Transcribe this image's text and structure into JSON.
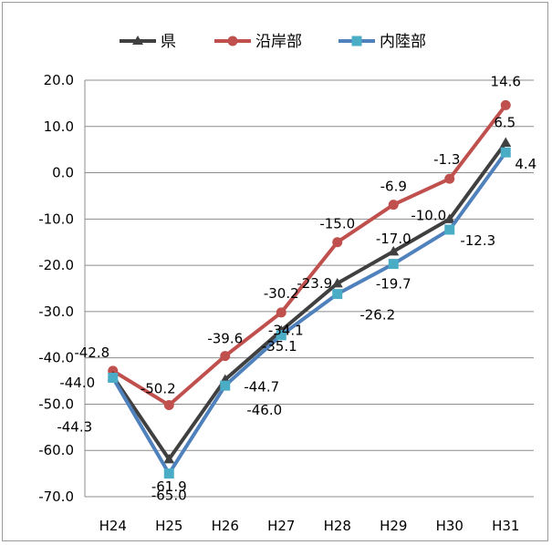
{
  "chart_data": {
    "type": "line",
    "title": "",
    "xlabel": "",
    "ylabel": "",
    "categories": [
      "H24",
      "H25",
      "H26",
      "H27",
      "H28",
      "H29",
      "H30",
      "H31"
    ],
    "ylim": [
      -70,
      20
    ],
    "yticks": [
      "20.0",
      "10.0",
      "0.0",
      "-10.0",
      "-20.0",
      "-30.0",
      "-40.0",
      "-50.0",
      "-60.0",
      "-70.0"
    ],
    "grid": "horizontal",
    "legend_position": "top",
    "series": [
      {
        "name": "県",
        "color": "#404040",
        "marker": "triangle",
        "values": [
          -44.0,
          -61.9,
          -44.7,
          -34.1,
          -23.9,
          -17.0,
          -10.0,
          6.5
        ],
        "labels": [
          "-44.0",
          "-61.9",
          "-44.7",
          "-34.1",
          "-23.9",
          "-17.0",
          "-10.0",
          "6.5"
        ]
      },
      {
        "name": "沿岸部",
        "color": "#c0504d",
        "marker": "circle",
        "values": [
          -42.8,
          -50.2,
          -39.6,
          -30.2,
          -15.0,
          -6.9,
          -1.3,
          14.6
        ],
        "labels": [
          "-42.8",
          "-50.2",
          "-39.6",
          "-30.2",
          "-15.0",
          "-6.9",
          "-1.3",
          "14.6"
        ]
      },
      {
        "name": "内陸部",
        "color": "#4f81bd",
        "marker": "square",
        "values": [
          -44.3,
          -65.0,
          -46.0,
          -35.1,
          -26.2,
          -19.7,
          -12.3,
          4.4
        ],
        "labels": [
          "-44.3",
          "-65.0",
          "-46.0",
          "-35.1",
          "-26.2",
          "-19.7",
          "-12.3",
          "4.4"
        ]
      }
    ]
  }
}
